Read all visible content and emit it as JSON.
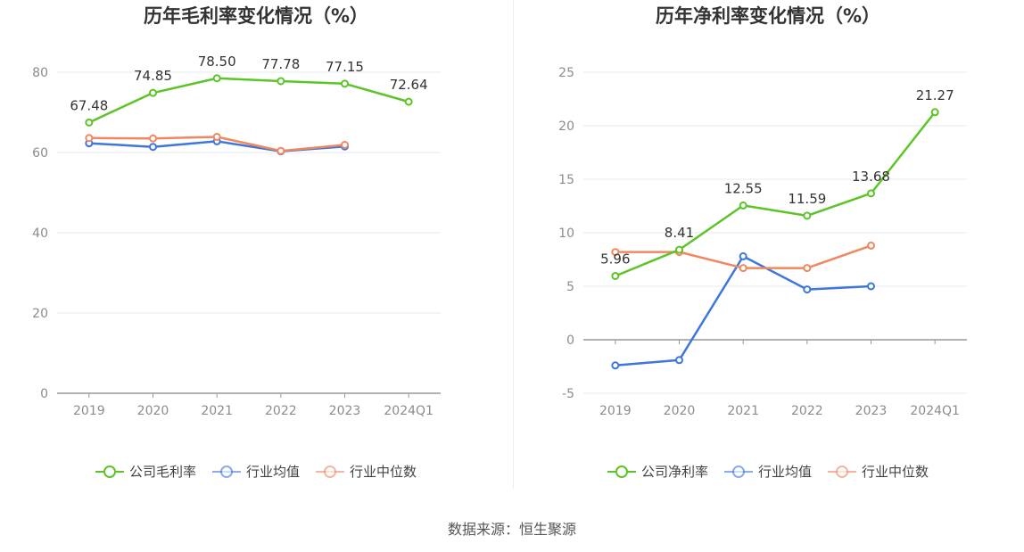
{
  "colors": {
    "company": "#5cc427",
    "avg": "#3d76dd",
    "median": "#f0875f",
    "grid": "#e6e9f0",
    "axis": "#999999",
    "tick_text": "#8c8c8c"
  },
  "source": "数据来源：恒生聚源",
  "chart_data": [
    {
      "type": "line",
      "title": "历年毛利率变化情况（%）",
      "categories": [
        "2019",
        "2020",
        "2021",
        "2022",
        "2023",
        "2024Q1"
      ],
      "yticks": [
        "0",
        "20",
        "40",
        "60",
        "80"
      ],
      "ylim": [
        0,
        80
      ],
      "grid": true,
      "legend_position": "bottom",
      "series": [
        {
          "name": "公司毛利率",
          "key": "company",
          "values": [
            67.48,
            74.85,
            78.5,
            77.78,
            77.15,
            72.64
          ],
          "labels": [
            "67.48",
            "74.85",
            "78.50",
            "77.78",
            "77.15",
            "72.64"
          ]
        },
        {
          "name": "行业均值",
          "key": "avg",
          "values": [
            62.3,
            61.4,
            62.8,
            60.3,
            61.5,
            null
          ]
        },
        {
          "name": "行业中位数",
          "key": "median",
          "values": [
            63.6,
            63.5,
            63.9,
            60.4,
            61.9,
            null
          ]
        }
      ]
    },
    {
      "type": "line",
      "title": "历年净利率变化情况（%）",
      "categories": [
        "2019",
        "2020",
        "2021",
        "2022",
        "2023",
        "2024Q1"
      ],
      "yticks": [
        "-5",
        "0",
        "5",
        "10",
        "15",
        "20",
        "25"
      ],
      "ylim": [
        -5,
        25
      ],
      "grid": true,
      "legend_position": "bottom",
      "series": [
        {
          "name": "公司净利率",
          "key": "company",
          "values": [
            5.96,
            8.41,
            12.55,
            11.59,
            13.68,
            21.27
          ],
          "labels": [
            "5.96",
            "8.41",
            "12.55",
            "11.59",
            "13.68",
            "21.27"
          ]
        },
        {
          "name": "行业均值",
          "key": "avg",
          "values": [
            -2.4,
            -1.9,
            7.8,
            4.7,
            5.0,
            null
          ]
        },
        {
          "name": "行业中位数",
          "key": "median",
          "values": [
            8.2,
            8.2,
            6.7,
            6.7,
            8.8,
            null
          ]
        }
      ]
    }
  ]
}
